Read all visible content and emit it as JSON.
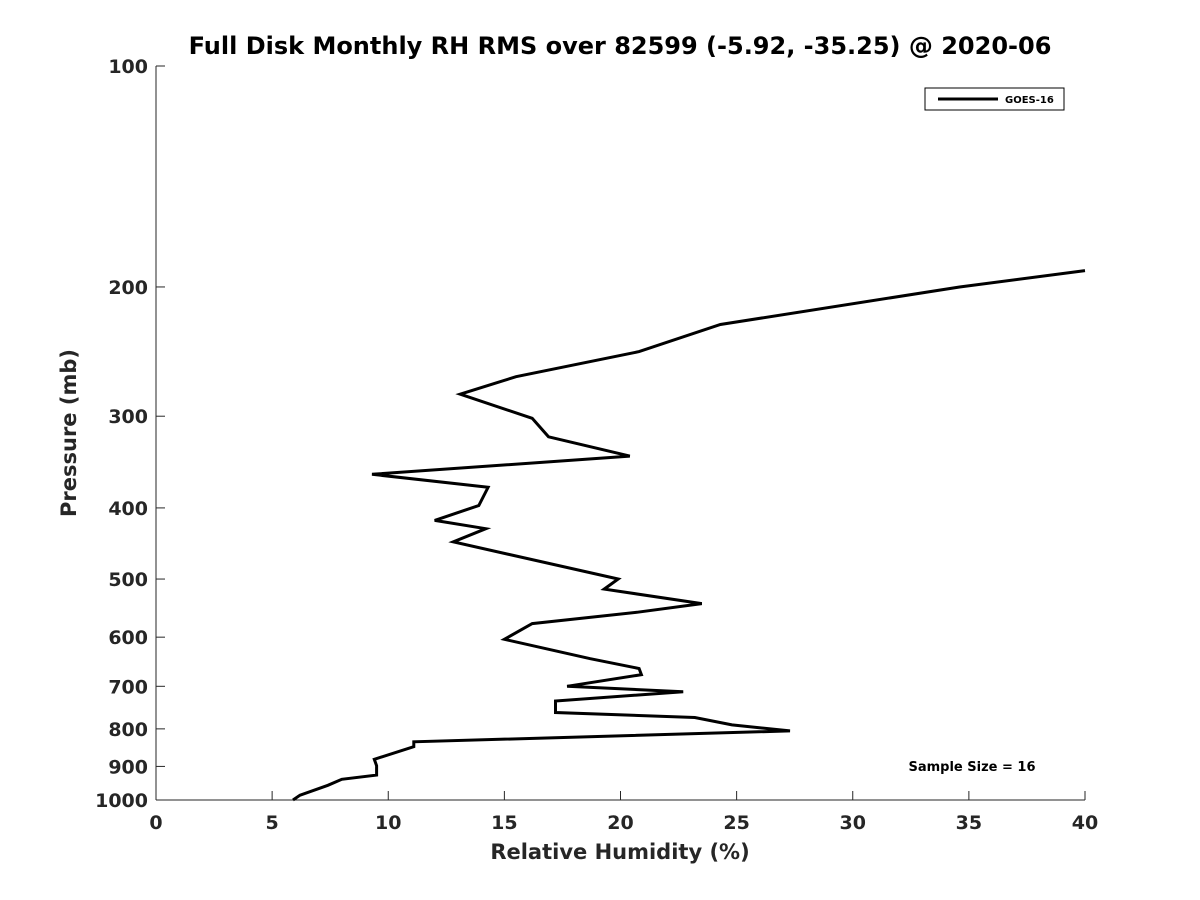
{
  "chart_data": {
    "type": "line",
    "title": "Full Disk Monthly RH RMS over 82599 (-5.92, -35.25) @ 2020-06",
    "xlabel": "Relative Humidity (%)",
    "ylabel": "Pressure (mb)",
    "xlim": [
      0,
      40
    ],
    "ylim": [
      100,
      1000
    ],
    "y_scale": "log",
    "y_reversed": true,
    "x_ticks": [
      0,
      5,
      10,
      15,
      20,
      25,
      30,
      35,
      40
    ],
    "x_tick_labels": [
      "0",
      "5",
      "10",
      "15",
      "20",
      "25",
      "30",
      "35",
      "40"
    ],
    "y_ticks": [
      100,
      200,
      300,
      400,
      500,
      600,
      700,
      800,
      900,
      1000
    ],
    "y_tick_labels": [
      "100",
      "200",
      "300",
      "400",
      "500",
      "600",
      "700",
      "800",
      "900",
      "1000"
    ],
    "grid": false,
    "legend_position": "top-right",
    "annotation": "Sample Size = 16",
    "series": [
      {
        "name": "GOES-16",
        "color": "#000000",
        "x": [
          40.0,
          34.6,
          24.3,
          20.8,
          15.5,
          13.1,
          16.2,
          16.9,
          20.4,
          9.3,
          14.3,
          13.9,
          12.0,
          14.2,
          12.8,
          19.9,
          19.3,
          23.5,
          20.7,
          16.2,
          15.0,
          18.7,
          20.8,
          20.9,
          17.7,
          22.7,
          17.2,
          17.2,
          23.2,
          24.8,
          27.3,
          11.1,
          11.1,
          9.4,
          9.5,
          9.5,
          8.0,
          7.4,
          6.2,
          5.9
        ],
        "y": [
          190,
          200,
          225,
          245,
          265,
          280,
          302,
          320,
          340,
          360,
          375,
          397,
          416,
          427,
          445,
          500,
          516,
          540,
          555,
          575,
          604,
          642,
          662,
          675,
          700,
          712,
          733,
          760,
          772,
          790,
          805,
          833,
          846,
          880,
          898,
          925,
          937,
          955,
          985,
          1000
        ]
      }
    ]
  }
}
